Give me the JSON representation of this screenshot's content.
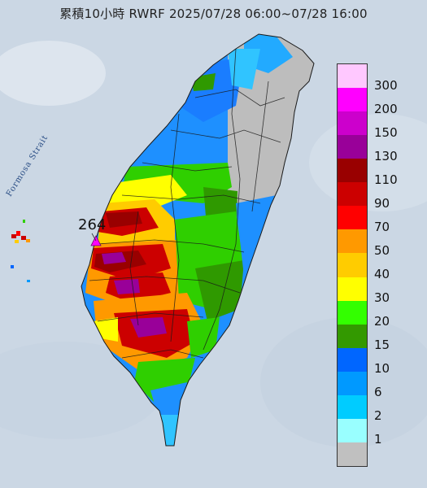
{
  "title": "累積10小時 RWRF 2025/07/28 06:00~07/28 16:00",
  "strait_label": "Formosa Strait",
  "max_station": {
    "value": "264"
  },
  "legend": [
    {
      "label": "300",
      "color": "#ffc8ff"
    },
    {
      "label": "200",
      "color": "#ff00ff"
    },
    {
      "label": "150",
      "color": "#cc00cc"
    },
    {
      "label": "130",
      "color": "#990099"
    },
    {
      "label": "110",
      "color": "#990000"
    },
    {
      "label": "90",
      "color": "#cc0000"
    },
    {
      "label": "70",
      "color": "#ff0000"
    },
    {
      "label": "50",
      "color": "#ff9900"
    },
    {
      "label": "40",
      "color": "#ffcc00"
    },
    {
      "label": "30",
      "color": "#ffff00"
    },
    {
      "label": "20",
      "color": "#33ff00"
    },
    {
      "label": "15",
      "color": "#339900"
    },
    {
      "label": "10",
      "color": "#0066ff"
    },
    {
      "label": "6",
      "color": "#0099ff"
    },
    {
      "label": "2",
      "color": "#00ccff"
    },
    {
      "label": "1",
      "color": "#99ffff"
    },
    {
      "label": "",
      "color": "#c0c0c0"
    }
  ]
}
